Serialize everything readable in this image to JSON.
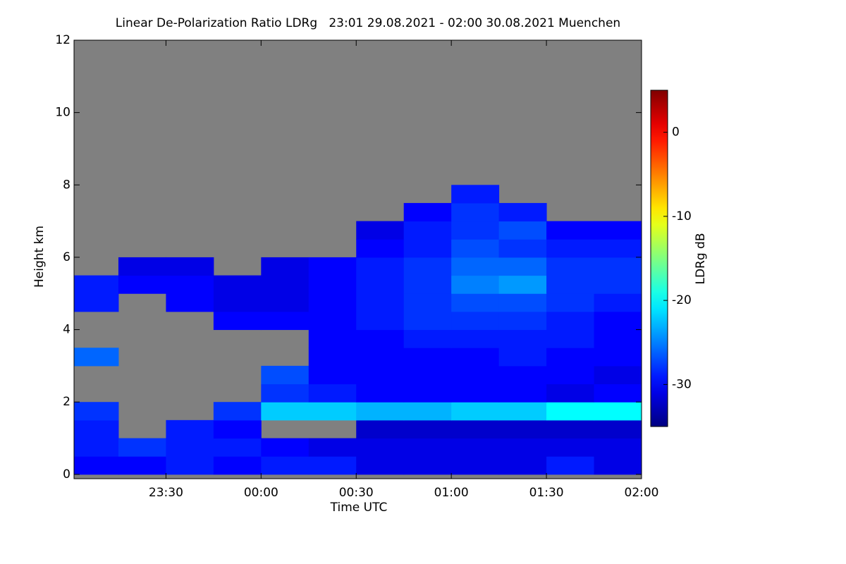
{
  "chart_data": {
    "type": "heatmap",
    "title": "Linear De-Polarization Ratio LDRg   23:01 29.08.2021 - 02:00 30.08.2021 Muenchen",
    "x_label": "Time UTC",
    "y_label": "Height km",
    "colorbar_label": "LDRg dB",
    "colormap": "jet",
    "nodata_color": "#808080",
    "xlim": [
      23.0167,
      26.0
    ],
    "xticks": [
      {
        "value": 23.5,
        "label": "23:30"
      },
      {
        "value": 24.0,
        "label": "00:00"
      },
      {
        "value": 24.5,
        "label": "00:30"
      },
      {
        "value": 25.0,
        "label": "01:00"
      },
      {
        "value": 25.5,
        "label": "01:30"
      },
      {
        "value": 26.0,
        "label": "02:00"
      }
    ],
    "ylim": [
      -0.12,
      12
    ],
    "yticks": [
      0,
      2,
      4,
      6,
      8,
      10,
      12
    ],
    "clim": [
      -35,
      5
    ],
    "cticks": [
      0,
      -10,
      -20,
      -30
    ],
    "xbins": [
      23.0167,
      23.25,
      23.5,
      23.75,
      24.0,
      24.25,
      24.5,
      24.75,
      25.0,
      25.25,
      25.5,
      25.75,
      26.0
    ],
    "ybins": [
      0,
      0.5,
      1,
      1.5,
      2,
      2.5,
      3,
      3.5,
      4,
      4.5,
      5,
      5.5,
      6,
      6.5,
      7,
      7.5,
      8
    ],
    "z": [
      [
        -30,
        -30,
        -29,
        -30,
        -29,
        -29,
        -31,
        -31,
        -31,
        -31,
        -29,
        -31
      ],
      [
        -29,
        -28,
        -29,
        -29,
        -30,
        -31,
        -31,
        -31,
        -31,
        -31,
        -31,
        -31
      ],
      [
        -29,
        null,
        -29,
        -30,
        null,
        null,
        -32,
        -32,
        -32,
        -32,
        -32,
        -32
      ],
      [
        -28,
        null,
        null,
        -28,
        -22,
        -22,
        -23,
        -23,
        -22,
        -22,
        -20,
        -20
      ],
      [
        null,
        null,
        null,
        null,
        -28,
        -29,
        -30,
        -30,
        -30,
        -30,
        -31,
        -30
      ],
      [
        null,
        null,
        null,
        null,
        -27,
        -30,
        -30,
        -30,
        -30,
        -30,
        -30,
        -31
      ],
      [
        -26,
        null,
        null,
        null,
        null,
        -30,
        -30,
        -30,
        -30,
        -29,
        -30,
        -30
      ],
      [
        null,
        null,
        null,
        null,
        null,
        -30,
        -30,
        -29,
        -29,
        -29,
        -29,
        -30
      ],
      [
        null,
        null,
        null,
        -30,
        -30,
        -30,
        -29,
        -28,
        -28,
        -28,
        -29,
        -30
      ],
      [
        -29,
        null,
        -30,
        -31,
        -31,
        -30,
        -29,
        -28,
        -27,
        -27,
        -28,
        -29
      ],
      [
        -29,
        -30,
        -30,
        -31,
        -31,
        -30,
        -29,
        -28,
        -25,
        -24,
        -28,
        -28
      ],
      [
        null,
        -31,
        -31,
        null,
        -31,
        -30,
        -29,
        -28,
        -26,
        -26,
        -28,
        -28
      ],
      [
        null,
        null,
        null,
        null,
        null,
        null,
        -30,
        -29,
        -27,
        -28,
        -29,
        -29
      ],
      [
        null,
        null,
        null,
        null,
        null,
        null,
        -31,
        -29,
        -28,
        -27,
        -30,
        -30
      ],
      [
        null,
        null,
        null,
        null,
        null,
        null,
        null,
        -30,
        -28,
        -29,
        null,
        null
      ],
      [
        null,
        null,
        null,
        null,
        null,
        null,
        null,
        null,
        -29,
        null,
        null,
        null
      ]
    ]
  }
}
